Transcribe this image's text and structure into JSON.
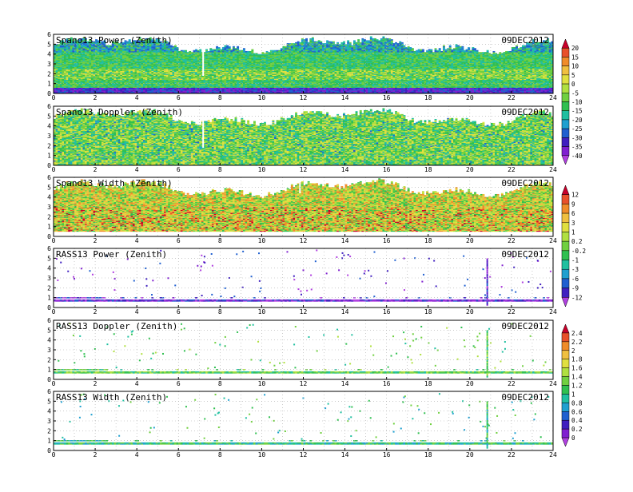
{
  "chart_data": [
    {
      "type": "heatmap",
      "title": "Spano13 Power (Zenith)",
      "date": "09DEC2012",
      "xlim": [
        0,
        24
      ],
      "ylim": [
        0,
        6
      ],
      "x_ticks": [
        "0",
        "2",
        "4",
        "6",
        "8",
        "10",
        "12",
        "14",
        "16",
        "18",
        "20",
        "22",
        "24"
      ],
      "y_ticks": [
        "0",
        "1",
        "2",
        "3",
        "4",
        "5",
        "6"
      ],
      "grid": true,
      "colorbar": "power",
      "field": "spano_power"
    },
    {
      "type": "heatmap",
      "title": "Spano13 Doppler (Zenith)",
      "date": "09DEC2012",
      "xlim": [
        0,
        24
      ],
      "ylim": [
        0,
        6
      ],
      "x_ticks": [
        "0",
        "2",
        "4",
        "6",
        "8",
        "10",
        "12",
        "14",
        "16",
        "18",
        "20",
        "22",
        "24"
      ],
      "y_ticks": [
        "0",
        "1",
        "2",
        "3",
        "4",
        "5",
        "6"
      ],
      "grid": true,
      "colorbar": "power",
      "field": "spano_doppler"
    },
    {
      "type": "heatmap",
      "title": "Spano13 Width (Zenith)",
      "date": "09DEC2012",
      "xlim": [
        0,
        24
      ],
      "ylim": [
        0,
        6
      ],
      "x_ticks": [
        "0",
        "2",
        "4",
        "6",
        "8",
        "10",
        "12",
        "14",
        "16",
        "18",
        "20",
        "22",
        "24"
      ],
      "y_ticks": [
        "0",
        "1",
        "2",
        "3",
        "4",
        "5",
        "6"
      ],
      "grid": true,
      "colorbar": "doppler",
      "field": "spano_width"
    },
    {
      "type": "heatmap",
      "title": "RASS13 Power (Zenith)",
      "date": "09DEC2012",
      "xlim": [
        0,
        24
      ],
      "ylim": [
        0,
        6
      ],
      "x_ticks": [
        "0",
        "2",
        "4",
        "6",
        "8",
        "10",
        "12",
        "14",
        "16",
        "18",
        "20",
        "22",
        "24"
      ],
      "y_ticks": [
        "0",
        "1",
        "2",
        "3",
        "4",
        "5",
        "6"
      ],
      "grid": true,
      "colorbar": "doppler",
      "field": "rass_power"
    },
    {
      "type": "heatmap",
      "title": "RASS13 Doppler (Zenith)",
      "date": "09DEC2012",
      "xlim": [
        0,
        24
      ],
      "ylim": [
        0,
        6
      ],
      "x_ticks": [
        "0",
        "2",
        "4",
        "6",
        "8",
        "10",
        "12",
        "14",
        "16",
        "18",
        "20",
        "22",
        "24"
      ],
      "y_ticks": [
        "0",
        "1",
        "2",
        "3",
        "4",
        "5",
        "6"
      ],
      "grid": true,
      "colorbar": "width",
      "field": "rass_doppler"
    },
    {
      "type": "heatmap",
      "title": "RASS13 Width (Zenith)",
      "date": "09DEC2012",
      "xlim": [
        0,
        24
      ],
      "ylim": [
        0,
        6
      ],
      "x_ticks": [
        "0",
        "2",
        "4",
        "6",
        "8",
        "10",
        "12",
        "14",
        "16",
        "18",
        "20",
        "22",
        "24"
      ],
      "y_ticks": [
        "0",
        "1",
        "2",
        "3",
        "4",
        "5",
        "6"
      ],
      "grid": true,
      "colorbar": "width",
      "field": "rass_width"
    }
  ],
  "colorbars": {
    "power": {
      "labels": [
        "20",
        "15",
        "10",
        "5",
        "0",
        "-5",
        "-10",
        "-15",
        "-20",
        "-25",
        "-30",
        "-35",
        "-40"
      ],
      "colors": [
        "#c8002a",
        "#e8502a",
        "#f08c2a",
        "#f0c040",
        "#e0e040",
        "#b0e040",
        "#70d040",
        "#30c050",
        "#20c0a0",
        "#20a0d0",
        "#2060d0",
        "#4020c0",
        "#8020d0",
        "#b040e0"
      ]
    },
    "doppler": {
      "labels": [
        "12",
        "9",
        "6",
        "3",
        "1",
        "0.2",
        "-0.2",
        "-1",
        "-3",
        "-6",
        "-9",
        "-12"
      ],
      "colors": [
        "#c8002a",
        "#e8502a",
        "#f08c2a",
        "#f0c040",
        "#e0e040",
        "#b0e040",
        "#70d040",
        "#30c050",
        "#20c0a0",
        "#20a0d0",
        "#2060d0",
        "#4020c0",
        "#b040e0"
      ]
    },
    "width": {
      "labels": [
        "2.4",
        "2.2",
        "2",
        "1.8",
        "1.6",
        "1.4",
        "1.2",
        "1",
        "0.8",
        "0.6",
        "0.4",
        "0.2",
        "0"
      ],
      "colors": [
        "#c8002a",
        "#e8502a",
        "#f08c2a",
        "#f0c040",
        "#e0e040",
        "#b0e040",
        "#70d040",
        "#30c050",
        "#20c0a0",
        "#20a0d0",
        "#2060d0",
        "#4020c0",
        "#8020d0",
        "#b040e0"
      ]
    }
  },
  "palettes": {
    "spano_power": [
      "#20c0a0",
      "#30c050",
      "#70d040",
      "#b0e040",
      "#e0e040",
      "#20a0d0",
      "#2060d0",
      "#4020c0",
      "#8020d0"
    ],
    "spano_doppler": [
      "#30c050",
      "#70d040",
      "#20c0a0",
      "#b0e040",
      "#e0e040",
      "#20a0d0",
      "#2060d0"
    ],
    "spano_width": [
      "#e0e040",
      "#f0c040",
      "#f08c2a",
      "#b0e040",
      "#70d040",
      "#30c050",
      "#e8502a",
      "#c8002a",
      "#20c0a0"
    ],
    "rass_power": [
      "#8020d0",
      "#b040e0",
      "#4020c0",
      "#2060d0"
    ],
    "rass_doppler": [
      "#70d040",
      "#b0e040",
      "#30c050",
      "#20c0a0"
    ],
    "rass_width": [
      "#30c050",
      "#70d040",
      "#20c0a0",
      "#20a0d0"
    ]
  }
}
